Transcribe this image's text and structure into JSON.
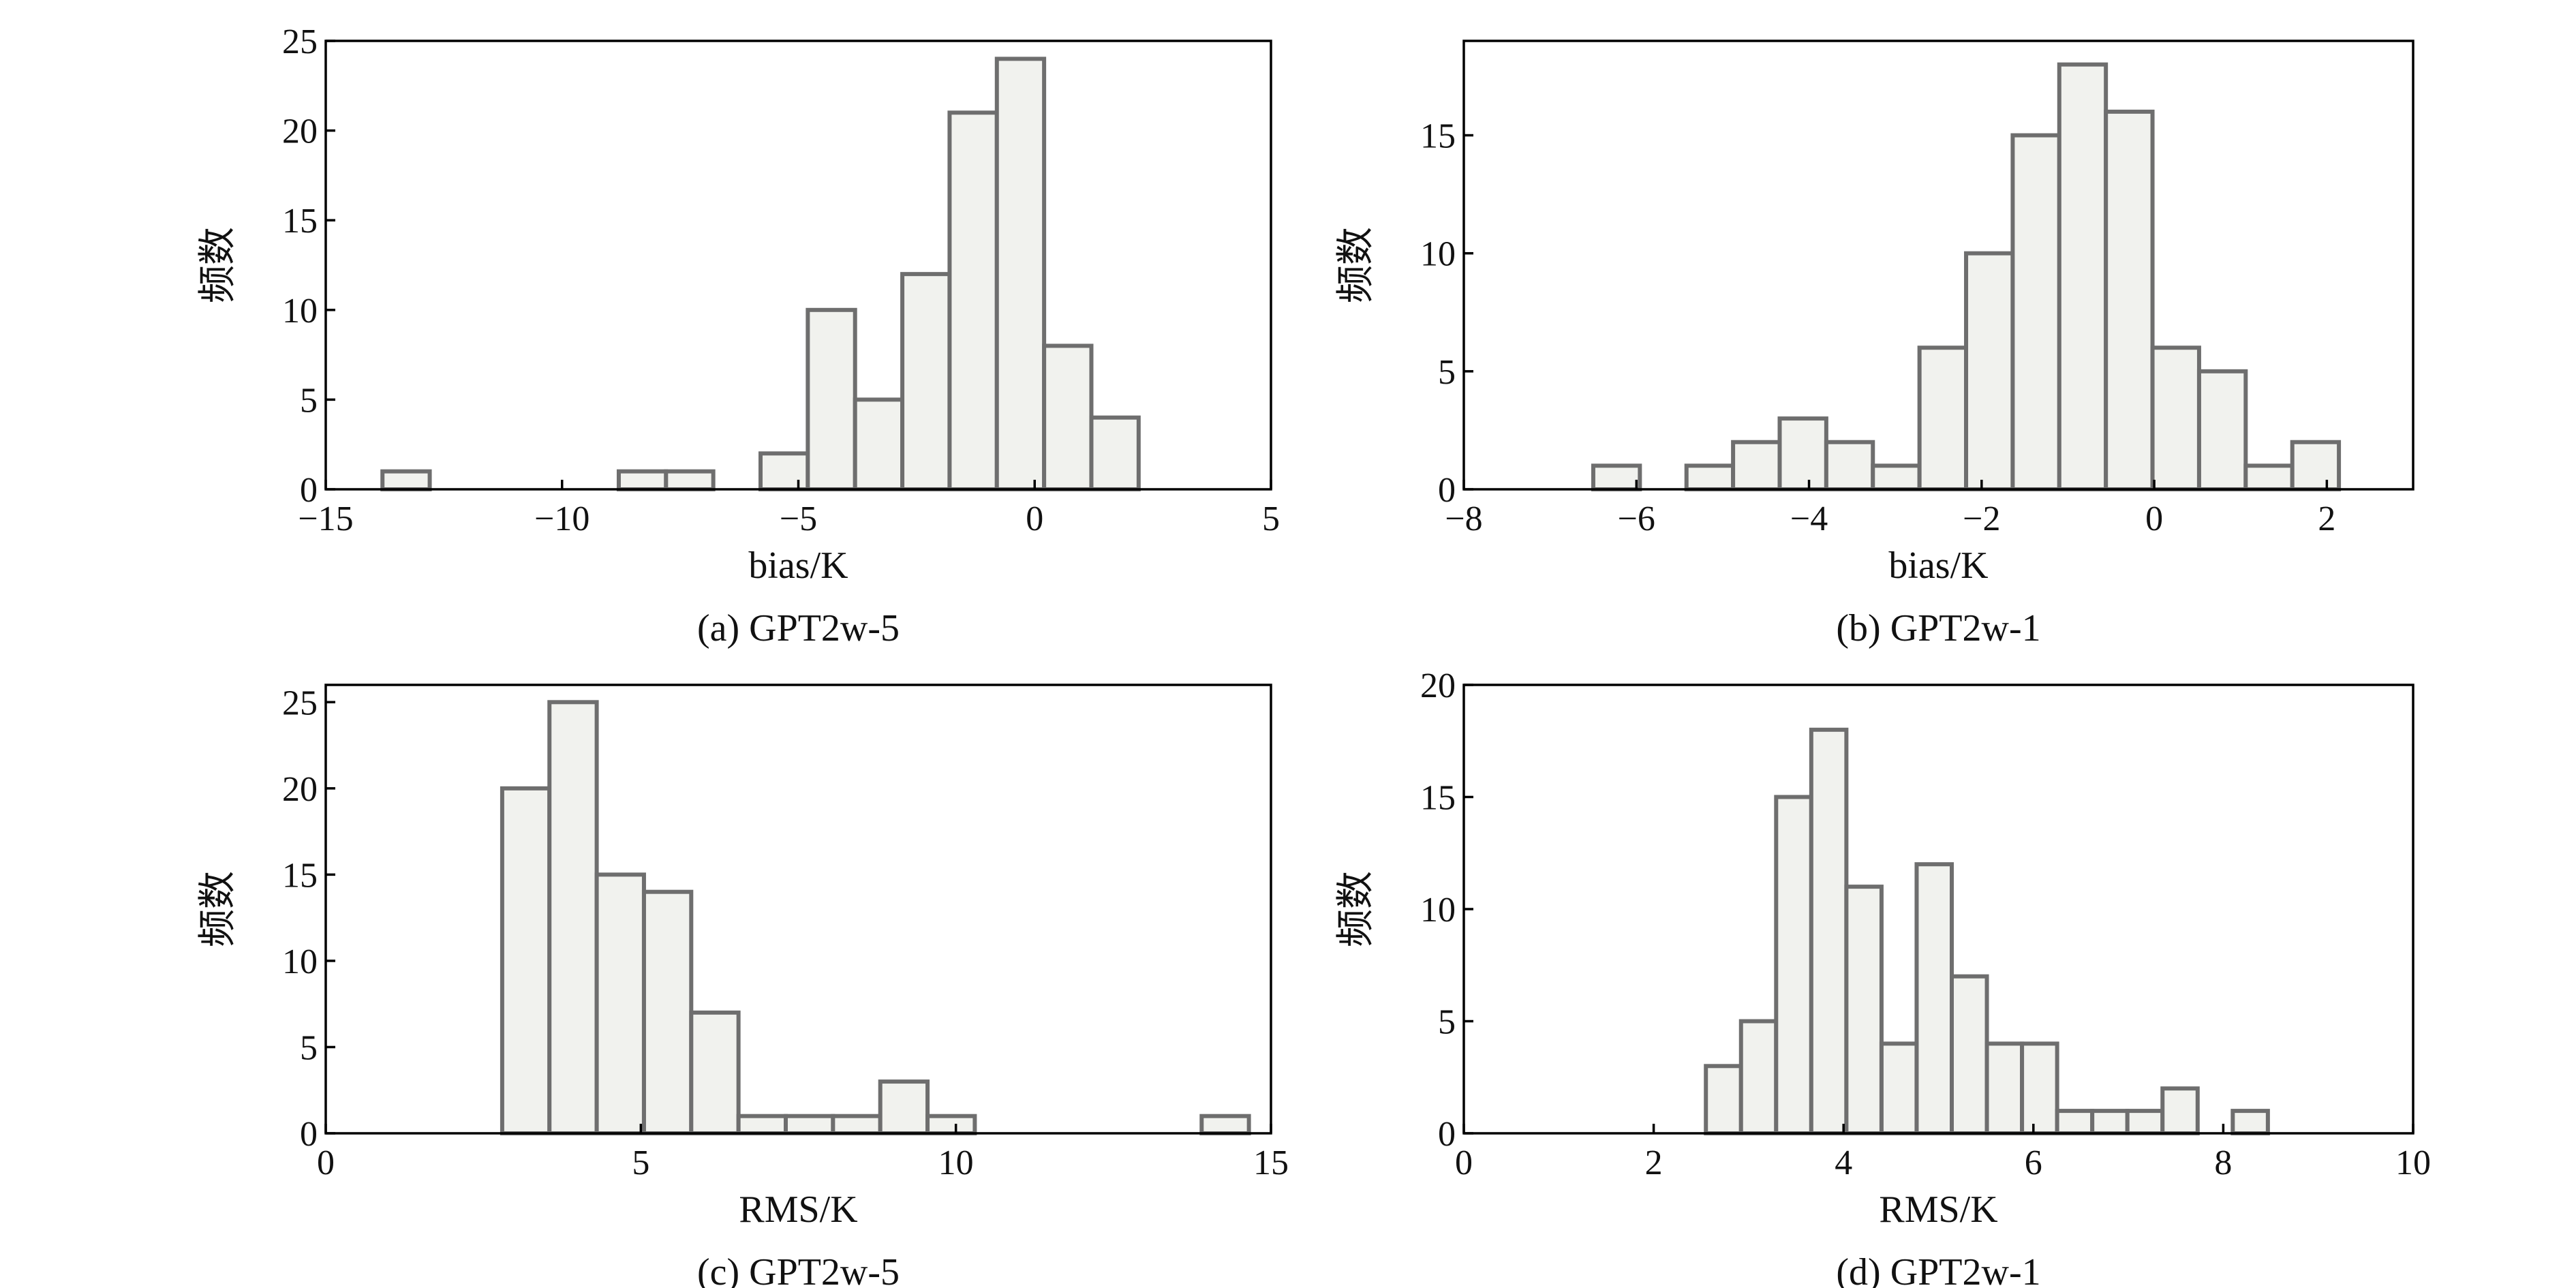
{
  "colors": {
    "bar_fill": "#f1f2ee",
    "bar_stroke": "#6e6e6e",
    "axis": "#000000"
  },
  "chart_data": [
    {
      "type": "histogram",
      "caption": "(a) GPT2w-5",
      "xlabel": "bias/K",
      "ylabel": "频数",
      "xlim": [
        -15,
        5
      ],
      "ylim": [
        0,
        25
      ],
      "xticks": [
        -15,
        -10,
        -5,
        0,
        5
      ],
      "xtick_labels": [
        "−15",
        "−10",
        "−5",
        "0",
        "5"
      ],
      "yticks": [
        0,
        5,
        10,
        15,
        20,
        25
      ],
      "ytick_labels": [
        "0",
        "5",
        "10",
        "15",
        "20",
        "25"
      ],
      "bin_edges": [
        -13.8,
        -12.8,
        -8.8,
        -7.8,
        -6.8,
        -5.8,
        -4.8,
        -3.8,
        -2.8,
        -1.8,
        -0.8,
        0.2,
        1.2,
        2.2
      ],
      "counts": [
        1,
        0,
        1,
        1,
        0,
        2,
        10,
        5,
        12,
        21,
        24,
        8,
        4
      ]
    },
    {
      "type": "histogram",
      "caption": "(b) GPT2w-1",
      "xlabel": "bias/K",
      "ylabel": "频数",
      "xlim": [
        -8,
        3
      ],
      "ylim": [
        0,
        19
      ],
      "xticks": [
        -8,
        -6,
        -4,
        -2,
        0,
        2
      ],
      "xtick_labels": [
        "−8",
        "−6",
        "−4",
        "−2",
        "0",
        "2"
      ],
      "yticks": [
        0,
        5,
        10,
        15
      ],
      "ytick_labels": [
        "0",
        "5",
        "10",
        "15"
      ],
      "bin_edges": [
        -6.5,
        -5.96,
        -5.42,
        -4.88,
        -4.34,
        -3.8,
        -3.26,
        -2.72,
        -2.18,
        -1.64,
        -1.1,
        -0.56,
        -0.02,
        0.52,
        1.06,
        1.6,
        2.14
      ],
      "counts": [
        1,
        0,
        1,
        2,
        3,
        2,
        1,
        6,
        10,
        15,
        18,
        16,
        6,
        5,
        1,
        2
      ]
    },
    {
      "type": "histogram",
      "caption": "(c) GPT2w-5",
      "xlabel": "RMS/K",
      "ylabel": "频数",
      "xlim": [
        0,
        15
      ],
      "ylim": [
        0,
        26
      ],
      "xticks": [
        0,
        5,
        10,
        15
      ],
      "xtick_labels": [
        "0",
        "5",
        "10",
        "15"
      ],
      "yticks": [
        0,
        5,
        10,
        15,
        20,
        25
      ],
      "ytick_labels": [
        "0",
        "5",
        "10",
        "15",
        "20",
        "25"
      ],
      "bin_edges": [
        2.8,
        3.55,
        4.3,
        5.05,
        5.8,
        6.55,
        7.3,
        8.05,
        8.8,
        9.55,
        10.3,
        13.9,
        14.65
      ],
      "counts": [
        20,
        25,
        15,
        14,
        7,
        1,
        1,
        1,
        3,
        1,
        0,
        1
      ]
    },
    {
      "type": "histogram",
      "caption": "(d) GPT2w-1",
      "xlabel": "RMS/K",
      "ylabel": "频数",
      "xlim": [
        0,
        10
      ],
      "ylim": [
        0,
        20
      ],
      "xticks": [
        0,
        2,
        4,
        6,
        8,
        10
      ],
      "xtick_labels": [
        "0",
        "2",
        "4",
        "6",
        "8",
        "10"
      ],
      "yticks": [
        0,
        5,
        10,
        15,
        20
      ],
      "ytick_labels": [
        "0",
        "5",
        "10",
        "15",
        "20"
      ],
      "bin_edges": [
        2.55,
        2.92,
        3.29,
        3.66,
        4.03,
        4.4,
        4.77,
        5.14,
        5.51,
        5.88,
        6.25,
        6.62,
        6.99,
        7.36,
        7.73,
        8.1,
        8.47
      ],
      "counts": [
        3,
        5,
        15,
        18,
        11,
        4,
        12,
        7,
        4,
        4,
        1,
        1,
        1,
        2,
        0,
        1
      ]
    }
  ]
}
